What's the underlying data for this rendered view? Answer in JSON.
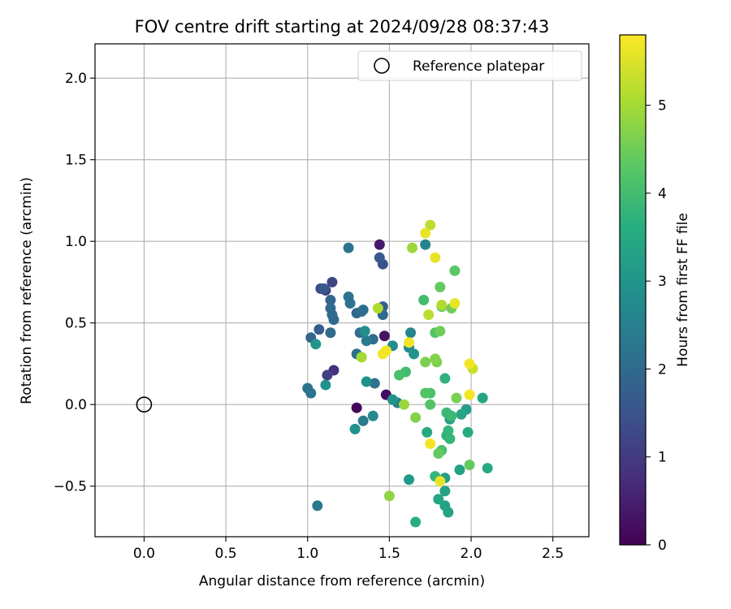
{
  "chart_data": {
    "type": "scatter",
    "title": "FOV centre drift starting at 2024/09/28 08:37:43",
    "xlabel": "Angular distance from reference (arcmin)",
    "ylabel": "Rotation from reference (arcmin)",
    "xlim": [
      -0.3,
      2.72
    ],
    "ylim": [
      -0.81,
      2.21
    ],
    "xticks": [
      0.0,
      0.5,
      1.0,
      1.5,
      2.0,
      2.5
    ],
    "xtick_labels": [
      "0.0",
      "0.5",
      "1.0",
      "1.5",
      "2.0",
      "2.5"
    ],
    "yticks": [
      -0.5,
      0.0,
      0.5,
      1.0,
      1.5,
      2.0
    ],
    "ytick_labels": [
      "−0.5",
      "0.0",
      "0.5",
      "1.0",
      "1.5",
      "2.0"
    ],
    "grid": true,
    "legend": {
      "position": "upper-right",
      "entries": [
        "Reference platepar"
      ]
    },
    "reference_point": {
      "x": 0.0,
      "y": 0.0,
      "marker": "open-circle"
    },
    "colorbar": {
      "label": "Hours from first FF file",
      "colormap": "viridis",
      "range": [
        0,
        5.8
      ],
      "ticks": [
        0,
        1,
        2,
        3,
        4,
        5
      ],
      "tick_labels": [
        "0",
        "1",
        "2",
        "3",
        "4",
        "5"
      ]
    },
    "series": [
      {
        "points": [
          [
            1.3,
            -0.02,
            0.1
          ],
          [
            1.48,
            0.06,
            0.2
          ],
          [
            1.47,
            0.42,
            0.3
          ],
          [
            1.44,
            0.98,
            0.4
          ],
          [
            1.16,
            0.21,
            0.8
          ],
          [
            1.11,
            0.7,
            1.0
          ],
          [
            1.12,
            0.18,
            1.1
          ],
          [
            1.15,
            0.75,
            1.2
          ],
          [
            1.08,
            0.71,
            1.3
          ],
          [
            1.46,
            0.86,
            1.5
          ],
          [
            1.44,
            0.9,
            1.6
          ],
          [
            1.1,
            0.71,
            1.6
          ],
          [
            1.07,
            0.46,
            1.7
          ],
          [
            1.46,
            0.6,
            1.8
          ],
          [
            1.3,
            0.56,
            1.9
          ],
          [
            1.02,
            0.41,
            1.9
          ],
          [
            1.14,
            0.64,
            1.9
          ],
          [
            1.14,
            0.59,
            2.0
          ],
          [
            1.16,
            0.52,
            2.0
          ],
          [
            1.15,
            0.55,
            2.0
          ],
          [
            1.14,
            0.44,
            2.0
          ],
          [
            1.4,
            0.4,
            2.0
          ],
          [
            1.46,
            0.55,
            2.0
          ],
          [
            1.3,
            0.31,
            2.1
          ],
          [
            1.34,
            0.58,
            2.1
          ],
          [
            1.33,
            0.57,
            2.1
          ],
          [
            1.32,
            0.44,
            2.1
          ],
          [
            1.41,
            0.13,
            2.2
          ],
          [
            1.0,
            0.1,
            2.2
          ],
          [
            1.02,
            0.07,
            2.2
          ],
          [
            1.25,
            0.96,
            2.2
          ],
          [
            1.25,
            0.66,
            2.2
          ],
          [
            1.26,
            0.62,
            2.2
          ],
          [
            1.06,
            -0.62,
            2.3
          ],
          [
            1.36,
            0.39,
            2.4
          ],
          [
            1.34,
            -0.1,
            2.4
          ],
          [
            1.55,
            0.01,
            2.5
          ],
          [
            1.72,
            0.98,
            2.6
          ],
          [
            1.63,
            0.44,
            2.6
          ],
          [
            1.62,
            0.35,
            2.7
          ],
          [
            1.4,
            -0.07,
            2.7
          ],
          [
            1.52,
            0.36,
            2.8
          ],
          [
            1.35,
            0.45,
            2.8
          ],
          [
            1.36,
            0.14,
            2.9
          ],
          [
            1.11,
            0.12,
            2.9
          ],
          [
            1.29,
            -0.15,
            2.9
          ],
          [
            1.05,
            0.37,
            3.0
          ],
          [
            1.52,
            0.03,
            3.0
          ],
          [
            1.65,
            0.31,
            3.0
          ],
          [
            1.62,
            -0.46,
            3.1
          ],
          [
            1.84,
            -0.45,
            3.2
          ],
          [
            1.97,
            -0.03,
            3.2
          ],
          [
            1.93,
            -0.4,
            3.3
          ],
          [
            1.87,
            -0.09,
            3.3
          ],
          [
            1.84,
            -0.53,
            3.3
          ],
          [
            1.86,
            -0.66,
            3.3
          ],
          [
            1.84,
            -0.62,
            3.3
          ],
          [
            1.8,
            -0.58,
            3.4
          ],
          [
            2.07,
            0.04,
            3.4
          ],
          [
            1.94,
            -0.06,
            3.4
          ],
          [
            1.98,
            -0.17,
            3.5
          ],
          [
            2.1,
            -0.39,
            3.5
          ],
          [
            1.73,
            -0.17,
            3.5
          ],
          [
            1.66,
            -0.72,
            3.6
          ],
          [
            1.84,
            0.16,
            3.7
          ],
          [
            1.85,
            -0.19,
            3.7
          ],
          [
            1.87,
            -0.21,
            3.8
          ],
          [
            1.86,
            -0.16,
            3.8
          ],
          [
            1.78,
            -0.44,
            3.8
          ],
          [
            1.85,
            -0.05,
            3.9
          ],
          [
            1.88,
            -0.07,
            3.9
          ],
          [
            1.71,
            0.64,
            4.0
          ],
          [
            1.6,
            0.2,
            4.0
          ],
          [
            1.56,
            0.18,
            4.1
          ],
          [
            1.75,
            0.07,
            4.1
          ],
          [
            1.82,
            -0.28,
            4.1
          ],
          [
            1.72,
            0.07,
            4.2
          ],
          [
            1.75,
            0.0,
            4.2
          ],
          [
            1.78,
            0.44,
            4.2
          ],
          [
            1.9,
            0.82,
            4.3
          ],
          [
            1.8,
            -0.3,
            4.4
          ],
          [
            1.99,
            -0.37,
            4.4
          ],
          [
            1.82,
            0.6,
            4.4
          ],
          [
            1.81,
            0.72,
            4.4
          ],
          [
            1.88,
            0.59,
            4.5
          ],
          [
            1.81,
            0.45,
            4.5
          ],
          [
            1.91,
            0.04,
            4.6
          ],
          [
            1.72,
            0.26,
            4.6
          ],
          [
            1.79,
            0.26,
            4.6
          ],
          [
            1.66,
            -0.08,
            4.7
          ],
          [
            1.78,
            0.28,
            4.7
          ],
          [
            1.5,
            -0.56,
            4.8
          ],
          [
            1.59,
            0.0,
            4.9
          ],
          [
            1.64,
            0.96,
            4.9
          ],
          [
            1.33,
            0.29,
            5.0
          ],
          [
            1.43,
            0.59,
            5.1
          ],
          [
            1.82,
            0.61,
            5.1
          ],
          [
            1.74,
            0.55,
            5.2
          ],
          [
            1.75,
            1.1,
            5.2
          ],
          [
            2.01,
            0.22,
            5.3
          ],
          [
            1.81,
            -0.47,
            5.6
          ],
          [
            1.72,
            1.05,
            5.6
          ],
          [
            1.78,
            0.9,
            5.6
          ],
          [
            1.9,
            0.62,
            5.6
          ],
          [
            1.62,
            0.38,
            5.7
          ],
          [
            1.46,
            0.31,
            5.7
          ],
          [
            1.48,
            0.33,
            5.7
          ],
          [
            1.99,
            0.25,
            5.7
          ],
          [
            1.99,
            0.06,
            5.7
          ],
          [
            1.75,
            -0.24,
            5.7
          ]
        ]
      }
    ]
  }
}
